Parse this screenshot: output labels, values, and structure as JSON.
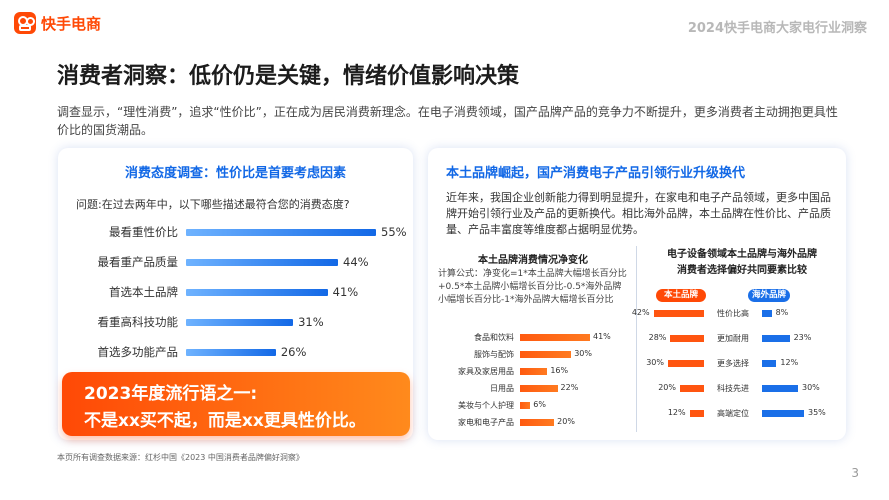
{
  "header": {
    "brand": "快手电商",
    "report_title": "2024快手电商大家电行业洞察"
  },
  "heading": "消费者洞察：低价仍是关键，情绪价值影响决策",
  "intro": "调查显示，“理性消费”，追求“性价比”，正在成为居民消费新理念。在电子消费领域，国产品牌产品的竞争力不断提升，更多消费者主动拥抱更具性价比的国货潮品。",
  "left_card": {
    "title": "消费态度调查：性价比是首要考虑因素",
    "question": "问题:在过去两年中，以下哪些描述最符合您的消费态度?",
    "slogan_line1": "2023年度流行语之一:",
    "slogan_line2": "不是xx买不起，而是xx更具性价比。"
  },
  "right_card": {
    "title": "本土品牌崛起，国产消费电子产品引领行业升级换代",
    "text": "近年来，我国企业创新能力得到明显提升，在家电和电子产品领域，更多中国品牌开始引领行业及产品的更新换代。相比海外品牌，本土品牌在性价比、产品质量、产品丰富度等维度都占据明显优势。",
    "sub1_title": "本土品牌消费情况净变化",
    "formula": "计算公式：净变化=1*本土品牌大幅增长百分比+0.5*本土品牌小幅增长百分比-0.5*海外品牌小幅增长百分比-1*海外品牌大幅增长百分比",
    "sub2_title_line1": "电子设备领域本土品牌与海外品牌",
    "sub2_title_line2": "消费者选择偏好共同要素比较",
    "pill_local": "本土品牌",
    "pill_foreign": "海外品牌"
  },
  "chart_data": [
    {
      "type": "bar",
      "title": "消费态度调查：性价比是首要考虑因素",
      "categories": [
        "最看重性价比",
        "最看重产品质量",
        "首选本土品牌",
        "看重高科技功能",
        "首选多功能产品"
      ],
      "values": [
        55,
        44,
        41,
        31,
        26
      ],
      "value_labels": [
        "55%",
        "44%",
        "41%",
        "31%",
        "26%"
      ],
      "unit": "%",
      "color": "#1268e6"
    },
    {
      "type": "bar",
      "title": "本土品牌消费情况净变化",
      "categories": [
        "食品和饮料",
        "服饰与配饰",
        "家具及家居用品",
        "日用品",
        "美妆与个人护理",
        "家电和电子产品"
      ],
      "values": [
        41,
        30,
        16,
        22,
        6,
        20
      ],
      "value_labels": [
        "41%",
        "30%",
        "16%",
        "22%",
        "6%",
        "20%"
      ],
      "unit": "%",
      "color": "#ff5510"
    },
    {
      "type": "bar",
      "title": "电子设备领域本土品牌与海外品牌消费者选择偏好共同要素比较",
      "categories": [
        "性价比高",
        "更加耐用",
        "更多选择",
        "科技先进",
        "高端定位"
      ],
      "series": [
        {
          "name": "本土品牌",
          "values": [
            42,
            28,
            30,
            20,
            12
          ],
          "labels": [
            "42%",
            "28%",
            "30%",
            "20%",
            "12%"
          ],
          "color": "#ff5510"
        },
        {
          "name": "海外品牌",
          "values": [
            8,
            23,
            12,
            30,
            35
          ],
          "labels": [
            "8%",
            "23%",
            "12%",
            "30%",
            "35%"
          ],
          "color": "#1a6fe8"
        }
      ],
      "unit": "%"
    }
  ],
  "footnote": "本页所有调查数据来源：红杉中国《2023 中国消费者品牌偏好洞察》",
  "page_number": "3"
}
